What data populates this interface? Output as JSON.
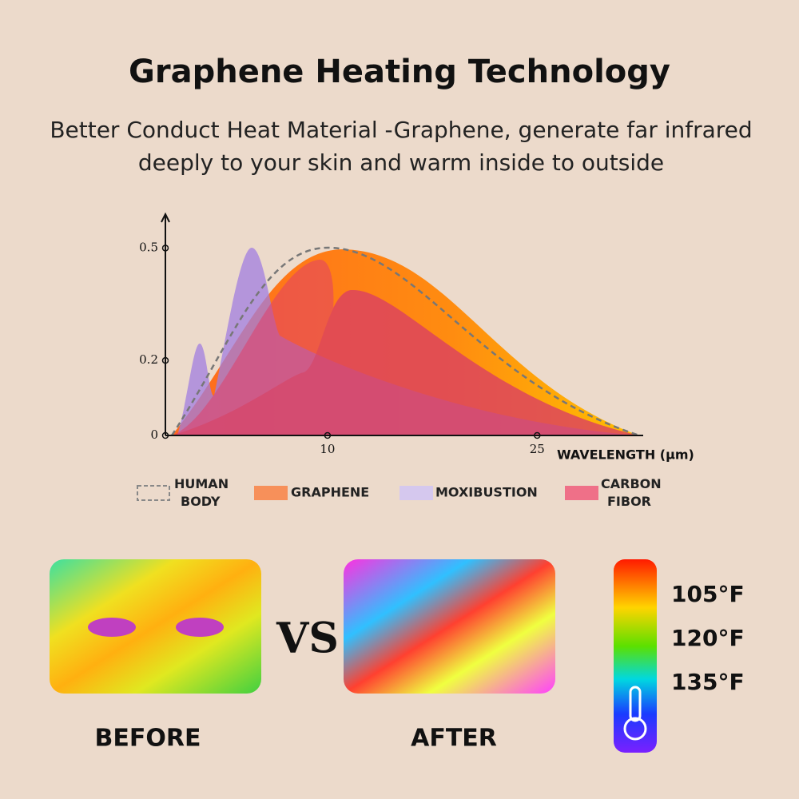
{
  "header": {
    "title": "Graphene Heating Technology",
    "subtitle_lines": [
      "Better Conduct Heat Material -Graphene, generate far infrared",
      "deeply to your skin and warm inside to outside"
    ]
  },
  "chart": {
    "ylim": [
      0,
      0.5862
    ],
    "yticks": [
      0,
      0.2,
      0.5
    ],
    "xlim": [
      -1.6,
      32.3
    ],
    "xticks": [
      10,
      25
    ],
    "x_label": "WAVELENGTH (μm)",
    "legend": [
      "HUMAN BODY",
      "GRAPHENE",
      "MOXIBUSTION",
      "CARBON FIBOR"
    ]
  },
  "comparison": {
    "before": "BEFORE",
    "vs": "VS",
    "after": "AFTER"
  },
  "temperature_scale": [
    "105°F",
    "120°F",
    "135°F"
  ]
}
